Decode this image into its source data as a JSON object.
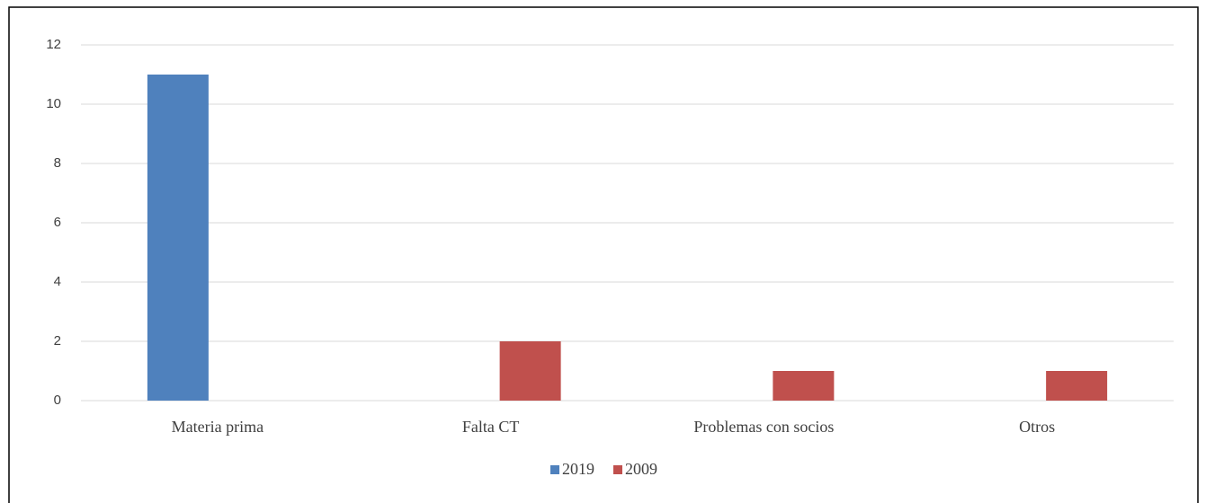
{
  "chart_data": {
    "type": "bar",
    "categories": [
      "Materia prima",
      "Falta CT",
      "Problemas con socios",
      "Otros"
    ],
    "series": [
      {
        "name": "2019",
        "color": "#4f81bd",
        "values": [
          11,
          0,
          0,
          0
        ]
      },
      {
        "name": "2009",
        "color": "#c0504d",
        "values": [
          0,
          2,
          1,
          1
        ]
      }
    ],
    "ylim": [
      0,
      12
    ],
    "yticks": [
      0,
      2,
      4,
      6,
      8,
      10,
      12
    ],
    "grid": true,
    "legend": "bottom"
  }
}
